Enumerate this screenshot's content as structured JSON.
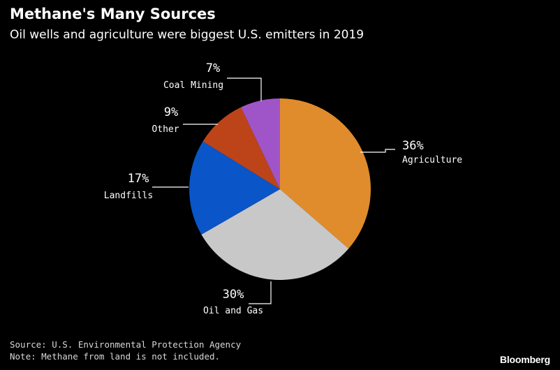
{
  "header": {
    "title": "Methane's Many Sources",
    "subtitle": "Oil wells and agriculture were biggest U.S. emitters in 2019"
  },
  "footer": {
    "source": "Source: U.S. Environmental Protection Agency",
    "note": "Note: Methane from land is not included.",
    "brand": "Bloomberg"
  },
  "chart_data": {
    "type": "pie",
    "title": "Methane's Many Sources",
    "subtitle": "Oil wells and agriculture were biggest U.S. emitters in 2019",
    "unit": "%",
    "slices": [
      {
        "label": "Agriculture",
        "value": 36,
        "value_label": "36%",
        "color": "#e08c2c"
      },
      {
        "label": "Oil and Gas",
        "value": 30,
        "value_label": "30%",
        "color": "#c8c8c8"
      },
      {
        "label": "Landfills",
        "value": 17,
        "value_label": "17%",
        "color": "#0a55c8"
      },
      {
        "label": "Other",
        "value": 9,
        "value_label": "9%",
        "color": "#bd4419"
      },
      {
        "label": "Coal Mining",
        "value": 7,
        "value_label": "7%",
        "color": "#9f55c8"
      }
    ],
    "start": "12 o'clock",
    "direction": "clockwise",
    "legend": "none (direct labels with leader lines)"
  }
}
